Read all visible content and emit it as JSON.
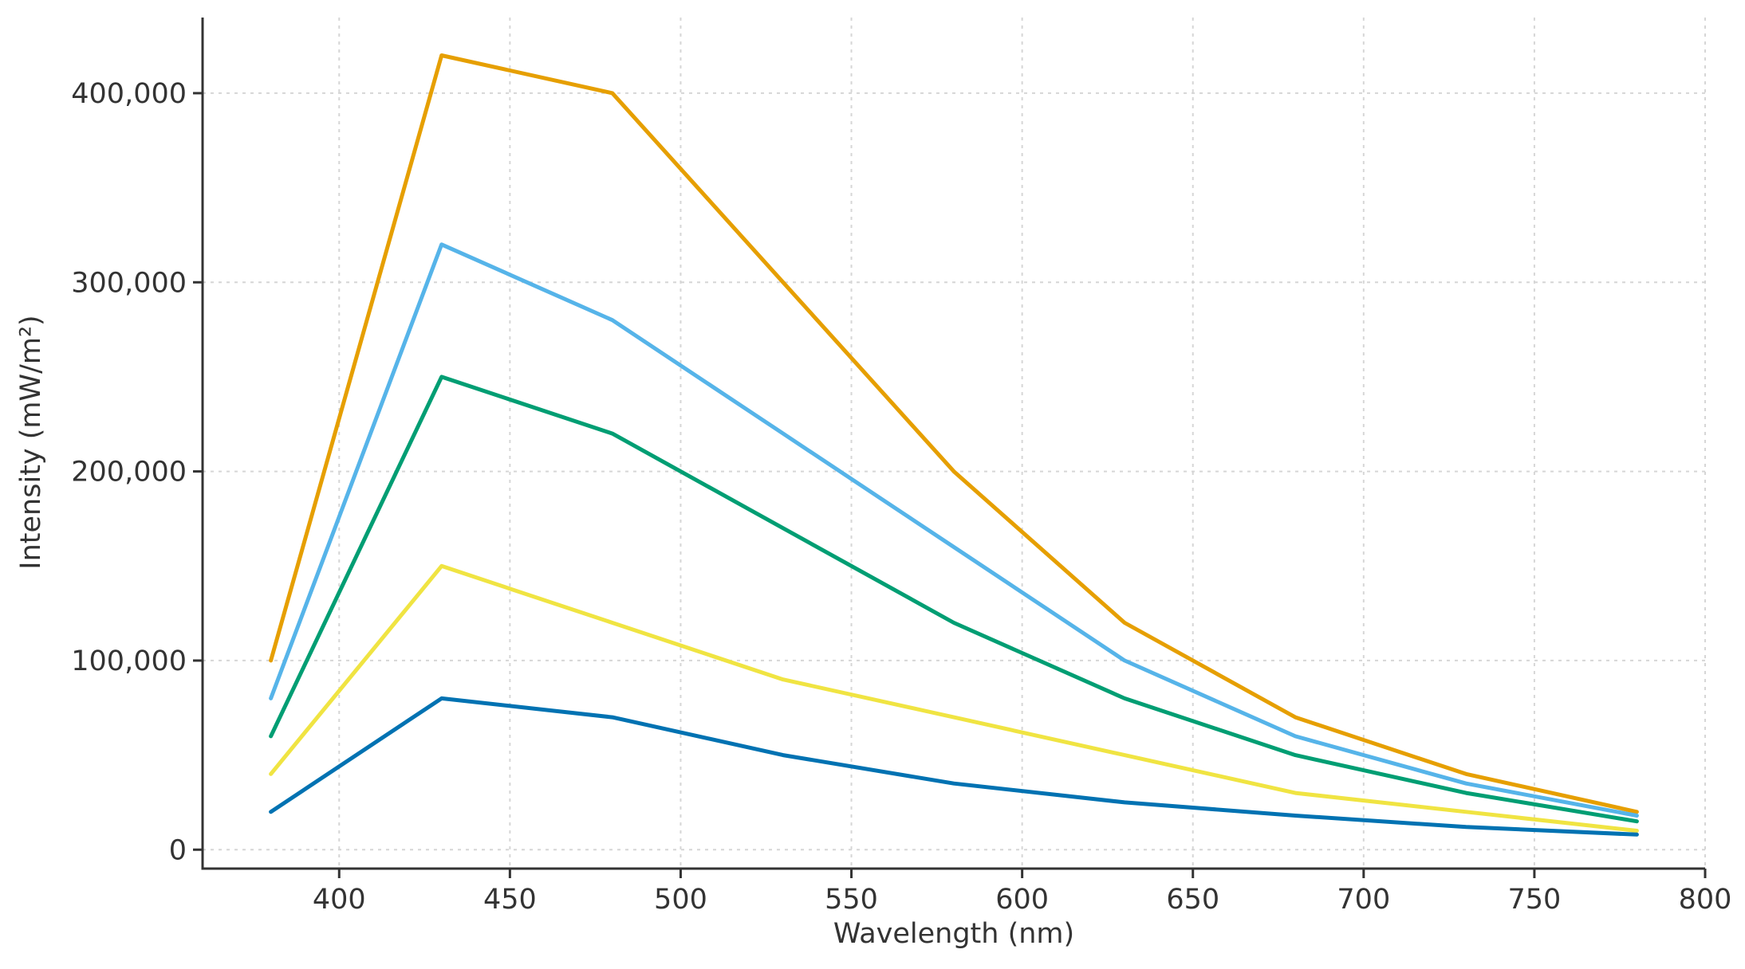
{
  "chart_data": {
    "type": "line",
    "title": "",
    "xlabel": "Wavelength (nm)",
    "ylabel": "Intensity (mW/m²)",
    "xlim": [
      360,
      800
    ],
    "ylim": [
      -10000,
      440000
    ],
    "grid": true,
    "x_ticks": [
      400,
      450,
      500,
      550,
      600,
      650,
      700,
      750,
      800
    ],
    "x_tick_labels": [
      "400",
      "450",
      "500",
      "550",
      "600",
      "650",
      "700",
      "750",
      "800"
    ],
    "y_ticks": [
      0,
      100000,
      200000,
      300000,
      400000
    ],
    "y_tick_labels": [
      "0",
      "100,000",
      "200,000",
      "300,000",
      "400,000"
    ],
    "x": [
      380,
      430,
      480,
      530,
      580,
      630,
      680,
      730,
      780
    ],
    "series": [
      {
        "color": "#E69F00",
        "values": [
          100000,
          420000,
          400000,
          300000,
          200000,
          120000,
          70000,
          40000,
          20000
        ]
      },
      {
        "color": "#56B4E9",
        "values": [
          80000,
          320000,
          280000,
          220000,
          160000,
          100000,
          60000,
          35000,
          18000
        ]
      },
      {
        "color": "#009E73",
        "values": [
          60000,
          250000,
          220000,
          170000,
          120000,
          80000,
          50000,
          30000,
          15000
        ]
      },
      {
        "color": "#F0E442",
        "values": [
          40000,
          150000,
          120000,
          90000,
          70000,
          50000,
          30000,
          20000,
          10000
        ]
      },
      {
        "color": "#0072B2",
        "values": [
          20000,
          80000,
          70000,
          50000,
          35000,
          25000,
          18000,
          12000,
          8000
        ]
      }
    ]
  }
}
